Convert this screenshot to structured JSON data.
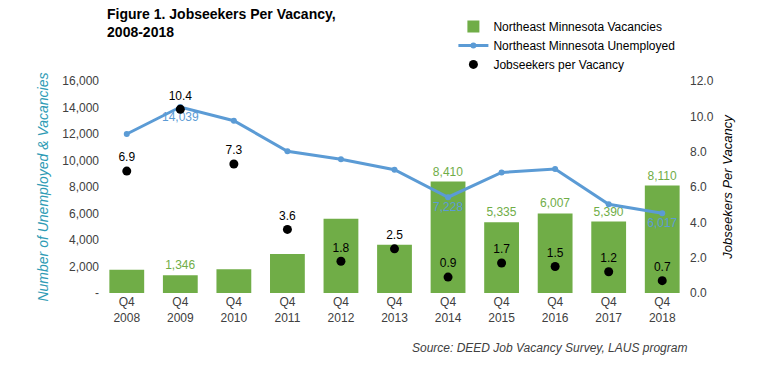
{
  "chart_data": {
    "type": "bar",
    "title": "Figure 1. Jobseekers Per Vacancy,\n2008-2018",
    "source": "Source: DEED Job Vacancy Survey, LAUS program",
    "y_label": "Number of Unemployed & Vacancies",
    "y2_label": "Jobseekers Per Vacancy",
    "categories": [
      "Q4 2008",
      "Q4 2009",
      "Q4 2010",
      "Q4 2011",
      "Q4 2012",
      "Q4 2013",
      "Q4 2014",
      "Q4 2015",
      "Q4 2016",
      "Q4 2017",
      "Q4 2018"
    ],
    "series": [
      {
        "name": "Northeast Minnesota Vacancies",
        "type": "bar",
        "color": "#70AD47",
        "values": [
          1750,
          1346,
          1800,
          2950,
          5600,
          3650,
          8410,
          5335,
          6007,
          5390,
          8110
        ],
        "data_labels": true,
        "value_labels": [
          null,
          "1,346",
          null,
          null,
          null,
          null,
          "8,410",
          "5,335",
          "6,007",
          "5,390",
          "8,110"
        ]
      },
      {
        "name": "Northeast Minnesota Unemployed",
        "type": "line",
        "color": "#5B9BD5",
        "marker": "circle",
        "values": [
          12000,
          14039,
          13000,
          10700,
          10100,
          9300,
          7228,
          9100,
          9350,
          6700,
          6017
        ],
        "data_labels": true,
        "value_labels": [
          null,
          "14,039",
          null,
          null,
          null,
          null,
          "7,228",
          null,
          null,
          null,
          "6,017"
        ]
      },
      {
        "name": "Jobseekers per Vacancy",
        "type": "scatter",
        "color": "#000000",
        "marker": "circle",
        "axis": "y2",
        "values": [
          6.9,
          10.4,
          7.3,
          3.6,
          1.8,
          2.5,
          0.9,
          1.7,
          1.5,
          1.2,
          0.7
        ],
        "data_labels": true
      }
    ],
    "ylim": [
      0,
      16000
    ],
    "yticks": [
      {
        "value": 0,
        "label": "-"
      },
      {
        "value": 2000,
        "label": "2,000"
      },
      {
        "value": 4000,
        "label": "4,000"
      },
      {
        "value": 6000,
        "label": "6,000"
      },
      {
        "value": 8000,
        "label": "8,000"
      },
      {
        "value": 10000,
        "label": "10,000"
      },
      {
        "value": 12000,
        "label": "12,000"
      },
      {
        "value": 14000,
        "label": "14,000"
      },
      {
        "value": 16000,
        "label": "16,000"
      }
    ],
    "y2lim": [
      0,
      12
    ],
    "y2ticks": [
      {
        "value": 0,
        "label": "0.0"
      },
      {
        "value": 2,
        "label": "2.0"
      },
      {
        "value": 4,
        "label": "4.0"
      },
      {
        "value": 6,
        "label": "6.0"
      },
      {
        "value": 8,
        "label": "8.0"
      },
      {
        "value": 10,
        "label": "10.0"
      },
      {
        "value": 12,
        "label": "12.0"
      }
    ],
    "grid": false,
    "legend": "top right"
  }
}
